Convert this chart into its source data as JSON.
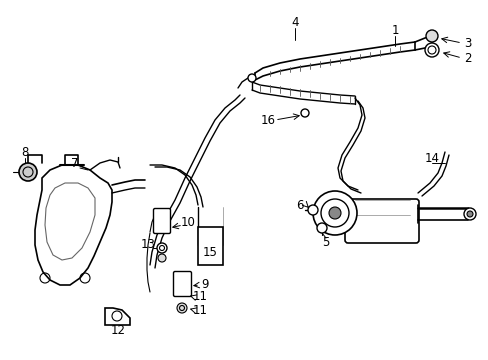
{
  "background_color": "#ffffff",
  "figsize": [
    4.89,
    3.6
  ],
  "dpi": 100
}
